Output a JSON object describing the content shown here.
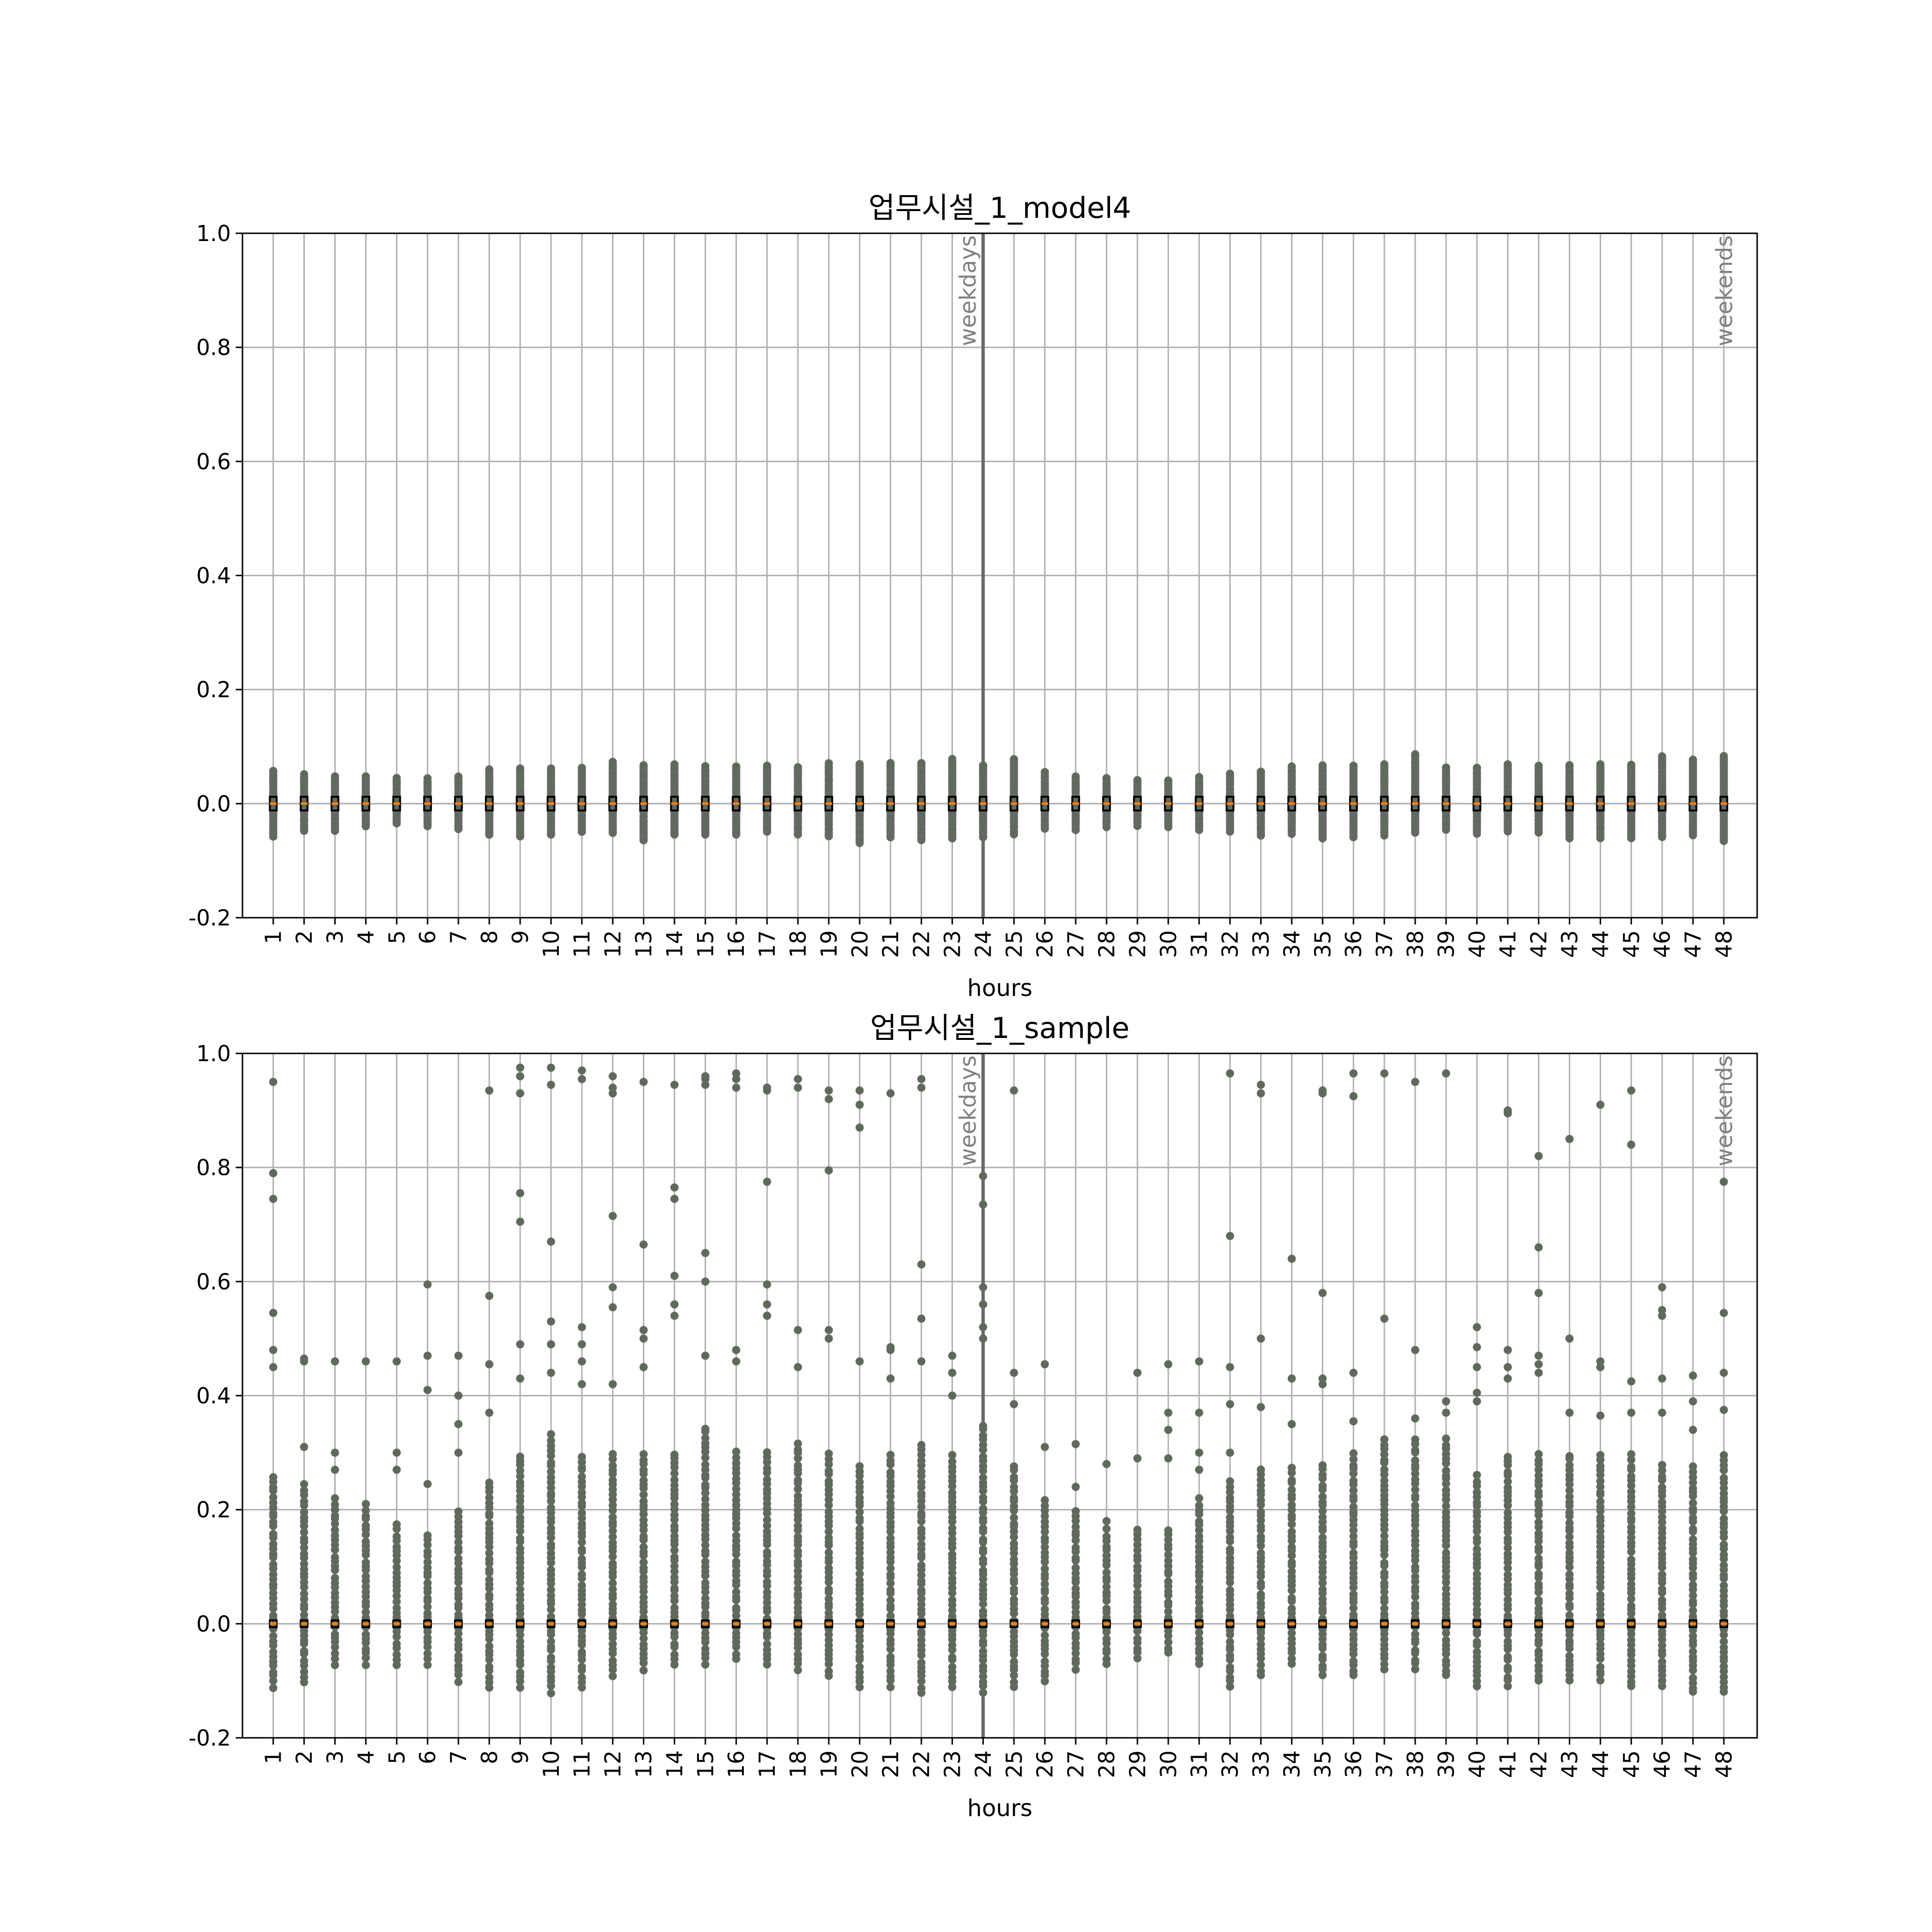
{
  "colors": {
    "point": "#5b6b57",
    "point_edge": "#696969",
    "box": "#000000",
    "median": "#ff7f0e",
    "grid": "#b0b0b0",
    "divider": "#696969",
    "annotation": "#808080"
  },
  "chart_data": [
    {
      "type": "scatter",
      "title": "업무시설_1_model4",
      "xlabel": "hours",
      "ylabel": "",
      "x": [
        "1",
        "2",
        "3",
        "4",
        "5",
        "6",
        "7",
        "8",
        "9",
        "10",
        "11",
        "12",
        "13",
        "14",
        "15",
        "16",
        "17",
        "18",
        "19",
        "20",
        "21",
        "22",
        "23",
        "24",
        "25",
        "26",
        "27",
        "28",
        "29",
        "30",
        "31",
        "32",
        "33",
        "34",
        "35",
        "36",
        "37",
        "38",
        "39",
        "40",
        "41",
        "42",
        "43",
        "44",
        "45",
        "46",
        "47",
        "48"
      ],
      "ylim": [
        -0.2,
        1.0
      ],
      "yticks": [
        "-0.2",
        "0.0",
        "0.2",
        "0.4",
        "0.6",
        "0.8",
        "1.0"
      ],
      "grid": true,
      "annotations": [
        "weekdays",
        "weekends"
      ],
      "max": [
        0.06,
        0.055,
        0.05,
        0.048,
        0.045,
        0.045,
        0.048,
        0.062,
        0.065,
        0.062,
        0.065,
        0.072,
        0.07,
        0.07,
        0.068,
        0.065,
        0.068,
        0.068,
        0.072,
        0.07,
        0.075,
        0.072,
        0.08,
        0.07,
        0.08,
        0.058,
        0.048,
        0.045,
        0.042,
        0.042,
        0.05,
        0.052,
        0.06,
        0.065,
        0.068,
        0.068,
        0.072,
        0.088,
        0.065,
        0.065,
        0.068,
        0.068,
        0.068,
        0.07,
        0.068,
        0.085,
        0.08,
        0.085
      ],
      "min": [
        -0.058,
        -0.048,
        -0.048,
        -0.04,
        -0.035,
        -0.04,
        -0.045,
        -0.055,
        -0.058,
        -0.055,
        -0.05,
        -0.052,
        -0.065,
        -0.055,
        -0.055,
        -0.055,
        -0.05,
        -0.055,
        -0.058,
        -0.07,
        -0.06,
        -0.065,
        -0.062,
        -0.06,
        -0.055,
        -0.045,
        -0.045,
        -0.04,
        -0.038,
        -0.04,
        -0.045,
        -0.048,
        -0.055,
        -0.052,
        -0.06,
        -0.058,
        -0.055,
        -0.05,
        -0.045,
        -0.052,
        -0.048,
        -0.05,
        -0.06,
        -0.06,
        -0.06,
        -0.058,
        -0.055,
        -0.065
      ]
    },
    {
      "type": "scatter",
      "title": "업무시설_1_sample",
      "xlabel": "hours",
      "ylabel": "",
      "x": [
        "1",
        "2",
        "3",
        "4",
        "5",
        "6",
        "7",
        "8",
        "9",
        "10",
        "11",
        "12",
        "13",
        "14",
        "15",
        "16",
        "17",
        "18",
        "19",
        "20",
        "21",
        "22",
        "23",
        "24",
        "25",
        "26",
        "27",
        "28",
        "29",
        "30",
        "31",
        "32",
        "33",
        "34",
        "35",
        "36",
        "37",
        "38",
        "39",
        "40",
        "41",
        "42",
        "43",
        "44",
        "45",
        "46",
        "47",
        "48"
      ],
      "ylim": [
        -0.2,
        1.0
      ],
      "yticks": [
        "-0.2",
        "0.0",
        "0.2",
        "0.4",
        "0.6",
        "0.8",
        "1.0"
      ],
      "grid": true,
      "annotations": [
        "weekdays",
        "weekends"
      ],
      "dense_max": [
        0.26,
        0.25,
        0.22,
        0.2,
        0.18,
        0.16,
        0.2,
        0.25,
        0.3,
        0.33,
        0.3,
        0.3,
        0.3,
        0.3,
        0.35,
        0.3,
        0.3,
        0.32,
        0.3,
        0.28,
        0.3,
        0.32,
        0.3,
        0.35,
        0.28,
        0.22,
        0.2,
        0.17,
        0.17,
        0.17,
        0.22,
        0.25,
        0.27,
        0.28,
        0.28,
        0.3,
        0.33,
        0.33,
        0.33,
        0.26,
        0.3,
        0.3,
        0.3,
        0.3,
        0.3,
        0.28,
        0.28,
        0.3
      ],
      "dense_min": [
        -0.11,
        -0.1,
        -0.07,
        -0.07,
        -0.07,
        -0.07,
        -0.1,
        -0.11,
        -0.11,
        -0.12,
        -0.11,
        -0.09,
        -0.08,
        -0.07,
        -0.07,
        -0.06,
        -0.07,
        -0.08,
        -0.09,
        -0.11,
        -0.11,
        -0.12,
        -0.11,
        -0.12,
        -0.11,
        -0.1,
        -0.08,
        -0.07,
        -0.06,
        -0.05,
        -0.07,
        -0.11,
        -0.09,
        -0.07,
        -0.09,
        -0.09,
        -0.08,
        -0.08,
        -0.09,
        -0.11,
        -0.11,
        -0.1,
        -0.1,
        -0.1,
        -0.11,
        -0.11,
        -0.12,
        -0.12
      ],
      "outliers": [
        [
          0.95,
          0.79,
          0.745,
          0.545,
          0.48,
          0.45
        ],
        [
          0.465,
          0.46,
          0.31
        ],
        [
          0.46,
          0.3,
          0.27
        ],
        [
          0.46,
          0.21
        ],
        [
          0.46,
          0.3,
          0.27
        ],
        [
          0.595,
          0.47,
          0.41,
          0.245
        ],
        [
          0.47,
          0.4,
          0.35,
          0.3
        ],
        [
          0.935,
          0.575,
          0.455,
          0.37
        ],
        [
          0.975,
          0.96,
          0.93,
          0.755,
          0.705,
          0.49,
          0.43
        ],
        [
          0.975,
          0.945,
          0.67,
          0.53,
          0.49,
          0.44
        ],
        [
          0.97,
          0.955,
          0.52,
          0.49,
          0.46,
          0.42
        ],
        [
          0.96,
          0.94,
          0.93,
          0.715,
          0.59,
          0.555,
          0.42
        ],
        [
          0.95,
          0.665,
          0.515,
          0.5,
          0.45
        ],
        [
          0.945,
          0.765,
          0.745,
          0.61,
          0.56,
          0.54
        ],
        [
          0.96,
          0.955,
          0.945,
          0.65,
          0.6,
          0.47
        ],
        [
          0.965,
          0.955,
          0.94,
          0.48,
          0.46
        ],
        [
          0.94,
          0.935,
          0.775,
          0.595,
          0.56,
          0.54
        ],
        [
          0.955,
          0.94,
          0.515,
          0.45
        ],
        [
          0.935,
          0.92,
          0.795,
          0.515,
          0.5
        ],
        [
          0.935,
          0.91,
          0.87,
          0.46
        ],
        [
          0.93,
          0.485,
          0.48,
          0.43
        ],
        [
          0.955,
          0.94,
          0.63,
          0.535,
          0.46
        ],
        [
          0.47,
          0.44,
          0.4
        ],
        [
          0.785,
          0.735,
          0.59,
          0.56,
          0.52,
          0.5
        ],
        [
          0.935,
          0.44,
          0.385
        ],
        [
          0.455,
          0.31
        ],
        [
          0.315,
          0.24
        ],
        [
          0.28,
          0.18
        ],
        [
          0.44,
          0.29
        ],
        [
          0.455,
          0.37,
          0.34,
          0.29
        ],
        [
          0.46,
          0.37,
          0.3,
          0.27
        ],
        [
          0.965,
          0.68,
          0.45,
          0.385,
          0.3
        ],
        [
          0.945,
          0.93,
          0.5,
          0.38
        ],
        [
          0.64,
          0.43,
          0.35
        ],
        [
          0.935,
          0.93,
          0.58,
          0.43,
          0.42
        ],
        [
          0.965,
          0.925,
          0.44,
          0.355
        ],
        [
          0.965,
          0.535
        ],
        [
          0.95,
          0.48,
          0.36
        ],
        [
          0.965,
          0.39,
          0.37
        ],
        [
          0.52,
          0.485,
          0.45,
          0.405,
          0.39
        ],
        [
          0.9,
          0.895,
          0.48,
          0.45,
          0.43
        ],
        [
          0.82,
          0.66,
          0.58,
          0.47,
          0.455,
          0.44
        ],
        [
          0.85,
          0.5,
          0.37
        ],
        [
          0.91,
          0.46,
          0.45,
          0.365
        ],
        [
          0.935,
          0.84,
          0.425,
          0.37
        ],
        [
          0.59,
          0.55,
          0.54,
          0.43,
          0.37
        ],
        [
          0.435,
          0.39,
          0.34
        ],
        [
          0.775,
          0.545,
          0.44,
          0.375
        ]
      ]
    }
  ]
}
